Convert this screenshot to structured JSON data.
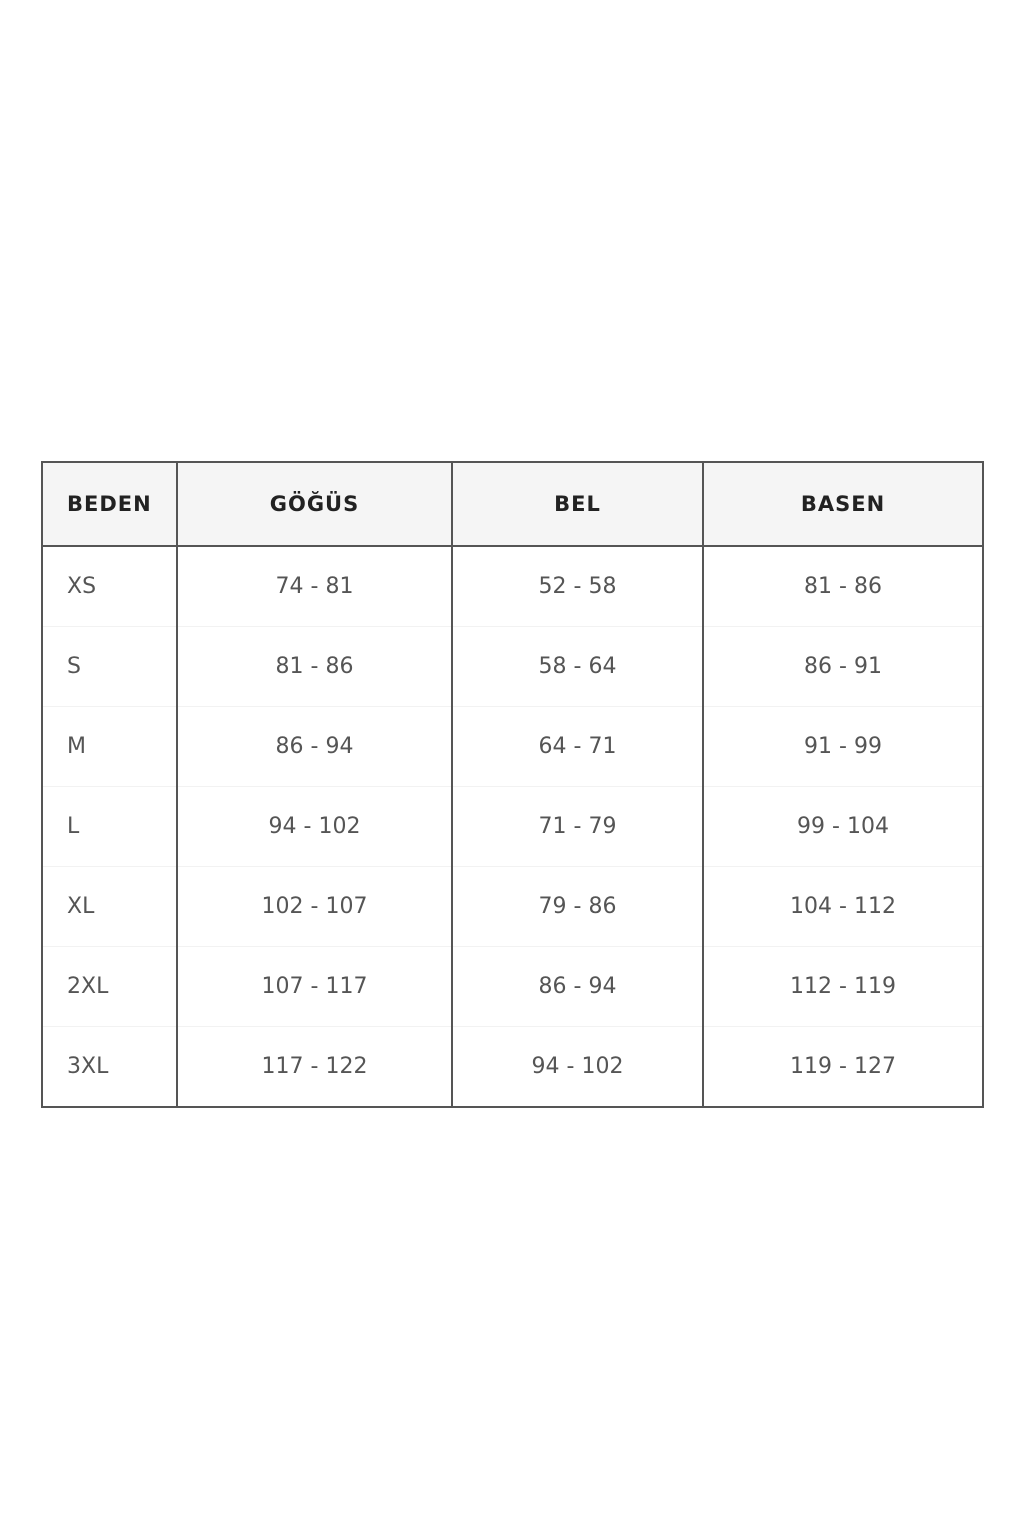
{
  "colors": {
    "border": "#555555",
    "header_bg": "#f5f5f5",
    "header_text": "#222222",
    "cell_text": "#555555"
  },
  "table": {
    "headers": [
      "BEDEN",
      "GÖĞÜS",
      "BEL",
      "BASEN"
    ],
    "rows": [
      [
        "XS",
        "74 - 81",
        "52 - 58",
        "81 - 86"
      ],
      [
        "S",
        "81 - 86",
        "58 - 64",
        "86 - 91"
      ],
      [
        "M",
        "86 - 94",
        "64 - 71",
        "91 - 99"
      ],
      [
        "L",
        "94 - 102",
        "71 - 79",
        "99 - 104"
      ],
      [
        "XL",
        "102 - 107",
        "79 - 86",
        "104 - 112"
      ],
      [
        "2XL",
        "107 - 117",
        "86 - 94",
        "112 - 119"
      ],
      [
        "3XL",
        "117 - 122",
        "94 - 102",
        "119 - 127"
      ]
    ]
  }
}
